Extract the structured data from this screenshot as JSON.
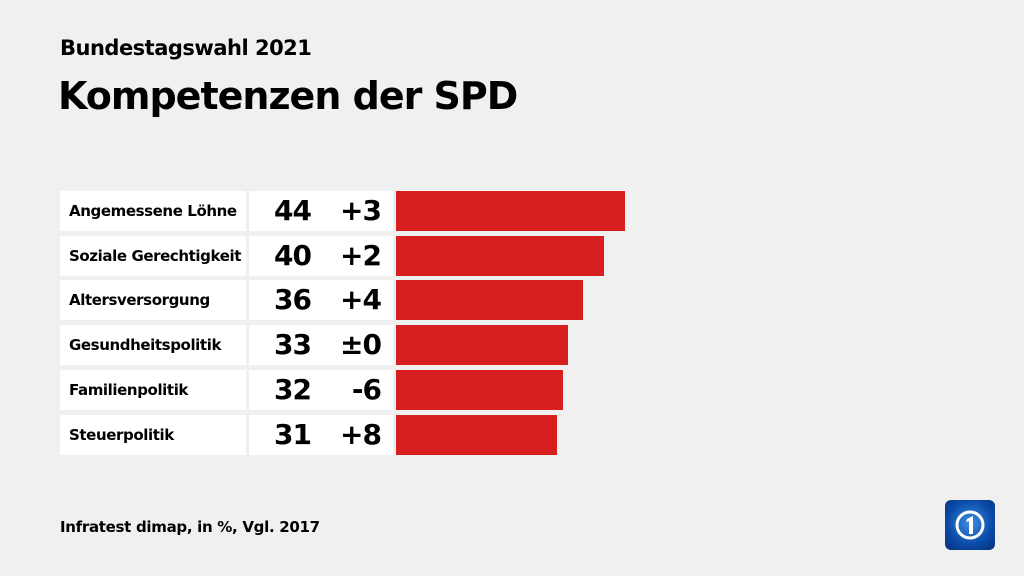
{
  "header": {
    "subtitle": "Bundestagswahl 2021",
    "title": "Kompetenzen der SPD"
  },
  "footer": {
    "source": "Infratest dimap, in %, Vgl. 2017"
  },
  "logo": {
    "icon": "ard-tagesschau-logo",
    "text": "1"
  },
  "colors": {
    "bar": "#d81f1f",
    "background": "#f0f0f0"
  },
  "chart_data": {
    "type": "bar",
    "orientation": "horizontal",
    "title": "Kompetenzen der SPD",
    "subtitle": "Bundestagswahl 2021",
    "categories": [
      "Angemessene Löhne",
      "Soziale Gerechtigkeit",
      "Altersversorgung",
      "Gesundheitspolitik",
      "Familienpolitik",
      "Steuerpolitik"
    ],
    "values": [
      44,
      40,
      36,
      33,
      32,
      31
    ],
    "changes": [
      "+3",
      "+2",
      "+4",
      "±0",
      "-6",
      "+8"
    ],
    "unit": "%",
    "xlim": [
      0,
      44
    ]
  }
}
